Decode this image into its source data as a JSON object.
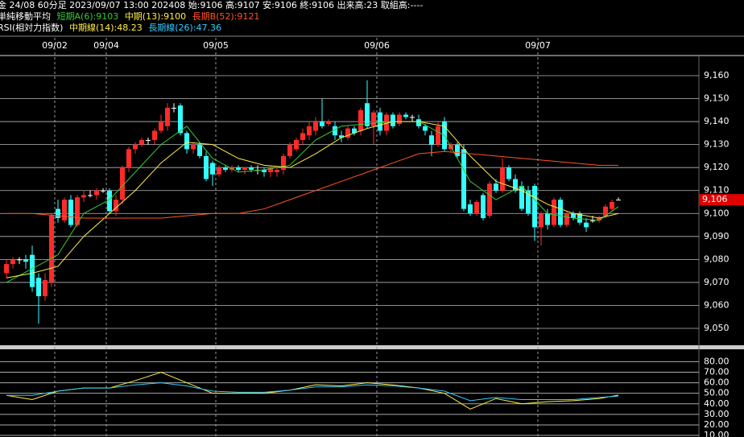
{
  "header": {
    "line1": "金 24/08 60分足 2023/09/07 13:00 202408 始:9106 高:9107 安:9106 終:9106 出来高:23 取組高:----",
    "ma_title": "単純移動平均",
    "rsi_title": "RSI(相対力指数)"
  },
  "chart_data": [
    {
      "type": "candlestick",
      "categories": [
        null,
        null,
        null,
        null,
        null,
        null,
        null,
        null,
        "09/02",
        null,
        null,
        null,
        null,
        null,
        null,
        null,
        "09/04",
        null,
        null,
        null,
        null,
        null,
        null,
        null,
        null,
        null,
        null,
        null,
        null,
        null,
        null,
        null,
        null,
        "09/05",
        null,
        null,
        null,
        null,
        null,
        null,
        null,
        null,
        null,
        null,
        null,
        null,
        null,
        null,
        null,
        null,
        null,
        null,
        null,
        null,
        null,
        null,
        null,
        null,
        "09/06",
        null,
        null,
        null,
        null,
        null,
        null,
        null,
        null,
        null,
        null,
        null,
        null,
        null,
        null,
        null,
        null,
        null,
        null,
        null,
        null,
        null,
        null,
        null,
        null,
        "09/07",
        null,
        null,
        null,
        null,
        null,
        null,
        null,
        null,
        null,
        null,
        null,
        null
      ],
      "ohlc": [
        [
          9074,
          9080,
          9072,
          9078
        ],
        [
          9078,
          9081,
          9076,
          9080
        ],
        [
          9080,
          9081,
          9078,
          9080
        ],
        [
          9080,
          9082,
          9076,
          9079
        ],
        [
          9082,
          9086,
          9066,
          9068
        ],
        [
          9072,
          9074,
          9052,
          9064
        ],
        [
          9064,
          9074,
          9062,
          9071
        ],
        [
          9070,
          9100,
          9068,
          9099
        ],
        [
          9102,
          9106,
          9096,
          9098
        ],
        [
          9097,
          9107,
          9096,
          9106
        ],
        [
          9106,
          9108,
          9094,
          9095
        ],
        [
          9095,
          9108,
          9094,
          9107
        ],
        [
          9107,
          9110,
          9105,
          9108
        ],
        [
          9108,
          9110,
          9107,
          9108
        ],
        [
          9108,
          9111,
          9106,
          9110
        ],
        [
          9110,
          9111,
          9109,
          9110
        ],
        [
          9110,
          9111,
          9100,
          9101
        ],
        [
          9101,
          9108,
          9099,
          9106
        ],
        [
          9106,
          9121,
          9104,
          9120
        ],
        [
          9120,
          9129,
          9118,
          9128
        ],
        [
          9128,
          9131,
          9126,
          9130
        ],
        [
          9130,
          9133,
          9129,
          9132
        ],
        [
          9132,
          9133,
          9130,
          9132
        ],
        [
          9132,
          9137,
          9130,
          9136
        ],
        [
          9136,
          9143,
          9135,
          9140
        ],
        [
          9138,
          9148,
          9136,
          9146
        ],
        [
          9146,
          9148,
          9144,
          9146
        ],
        [
          9147,
          9148,
          9134,
          9135
        ],
        [
          9135,
          9136,
          9126,
          9128
        ],
        [
          9128,
          9131,
          9126,
          9130
        ],
        [
          9130,
          9131,
          9124,
          9125
        ],
        [
          9125,
          9127,
          9114,
          9115
        ],
        [
          9122,
          9123,
          9112,
          9117
        ],
        [
          9117,
          9121,
          9116,
          9120
        ],
        [
          9120,
          9121,
          9118,
          9119
        ],
        [
          9119,
          9121,
          9118,
          9120
        ],
        [
          9120,
          9121,
          9118,
          9119
        ],
        [
          9119,
          9120,
          9117,
          9120
        ],
        [
          9120,
          9121,
          9118,
          9119
        ],
        [
          9119,
          9121,
          9117,
          9119
        ],
        [
          9119,
          9120,
          9116,
          9118
        ],
        [
          9118,
          9121,
          9116,
          9120
        ],
        [
          9118,
          9120,
          9116,
          9119
        ],
        [
          9119,
          9126,
          9117,
          9125
        ],
        [
          9125,
          9131,
          9124,
          9130
        ],
        [
          9128,
          9133,
          9127,
          9132
        ],
        [
          9132,
          9137,
          9130,
          9135
        ],
        [
          9134,
          9140,
          9132,
          9138
        ],
        [
          9136,
          9142,
          9134,
          9140
        ],
        [
          9140,
          9150,
          9137,
          9138
        ],
        [
          9139,
          9141,
          9138,
          9140
        ],
        [
          9138,
          9140,
          9132,
          9134
        ],
        [
          9134,
          9136,
          9131,
          9133
        ],
        [
          9133,
          9138,
          9132,
          9137
        ],
        [
          9137,
          9138,
          9134,
          9135
        ],
        [
          9136,
          9146,
          9134,
          9145
        ],
        [
          9148,
          9158,
          9137,
          9138
        ],
        [
          9138,
          9145,
          9130,
          9144
        ],
        [
          9144,
          9146,
          9134,
          9136
        ],
        [
          9136,
          9144,
          9134,
          9143
        ],
        [
          9143,
          9144,
          9137,
          9138
        ],
        [
          9139,
          9144,
          9138,
          9143
        ],
        [
          9143,
          9144,
          9141,
          9142
        ],
        [
          9142,
          9143,
          9140,
          9142
        ],
        [
          9141,
          9143,
          9137,
          9138
        ],
        [
          9138,
          9139,
          9134,
          9136
        ],
        [
          9134,
          9136,
          9125,
          9130
        ],
        [
          9130,
          9140,
          9129,
          9138
        ],
        [
          9140,
          9142,
          9127,
          9128
        ],
        [
          9128,
          9131,
          9127,
          9130
        ],
        [
          9130,
          9131,
          9124,
          9125
        ],
        [
          9128,
          9130,
          9101,
          9102
        ],
        [
          9104,
          9106,
          9099,
          9100
        ],
        [
          9100,
          9106,
          9099,
          9105
        ],
        [
          9108,
          9109,
          9097,
          9098
        ],
        [
          9099,
          9114,
          9098,
          9113
        ],
        [
          9113,
          9115,
          9109,
          9110
        ],
        [
          9110,
          9124,
          9109,
          9120
        ],
        [
          9120,
          9121,
          9114,
          9115
        ],
        [
          9115,
          9117,
          9109,
          9110
        ],
        [
          9112,
          9114,
          9101,
          9102
        ],
        [
          9110,
          9112,
          9099,
          9100
        ],
        [
          9112,
          9113,
          9088,
          9094
        ],
        [
          9094,
          9101,
          9086,
          9100
        ],
        [
          9100,
          9102,
          9093,
          9095
        ],
        [
          9095,
          9107,
          9094,
          9106
        ],
        [
          9106,
          9107,
          9094,
          9095
        ],
        [
          9095,
          9101,
          9094,
          9100
        ],
        [
          9100,
          9101,
          9097,
          9098
        ],
        [
          9100,
          9101,
          9095,
          9096
        ],
        [
          9096,
          9098,
          9092,
          9094
        ],
        [
          9097,
          9099,
          9096,
          9097
        ],
        [
          9097,
          9099,
          9096,
          9098
        ],
        [
          9099,
          9104,
          9098,
          9103
        ],
        [
          9102,
          9106,
          9101,
          9105
        ],
        [
          9106,
          9107,
          9106,
          9106
        ]
      ],
      "up_color": "#ff2a2a",
      "down_color": "#33ffff",
      "doji_color": "#ffffff",
      "series": [
        {
          "name": "短期A(6):9103",
          "color": "#33cc33",
          "x": [
            0,
            4,
            8,
            12,
            16,
            20,
            24,
            28,
            32,
            36,
            40,
            44,
            48,
            52,
            56,
            60,
            64,
            68,
            72,
            76,
            80,
            84,
            88,
            92,
            95
          ],
          "values": [
            9070,
            9076,
            9082,
            9100,
            9106,
            9118,
            9130,
            9138,
            9124,
            9118,
            9119,
            9121,
            9132,
            9138,
            9139,
            9140,
            9140,
            9134,
            9114,
            9106,
            9112,
            9100,
            9098,
            9097,
            9103
          ]
        },
        {
          "name": "中期(13):9100",
          "color": "#ffee44",
          "x": [
            0,
            4,
            8,
            12,
            16,
            20,
            24,
            28,
            32,
            36,
            40,
            44,
            48,
            52,
            56,
            60,
            64,
            68,
            72,
            76,
            80,
            84,
            88,
            92,
            95
          ],
          "values": [
            9072,
            9074,
            9077,
            9090,
            9100,
            9110,
            9122,
            9131,
            9130,
            9124,
            9121,
            9120,
            9126,
            9133,
            9137,
            9140,
            9140,
            9138,
            9125,
            9114,
            9110,
            9104,
            9100,
            9098,
            9100
          ]
        },
        {
          "name": "長期B(52):9121",
          "color": "#ff5522",
          "x": [
            0,
            4,
            8,
            12,
            16,
            20,
            24,
            28,
            32,
            36,
            40,
            44,
            48,
            52,
            56,
            60,
            64,
            68,
            72,
            76,
            80,
            84,
            88,
            92,
            95
          ],
          "values": [
            9100,
            9100,
            9099,
            9098,
            9098,
            9098,
            9098,
            9099,
            9100,
            9100,
            9102,
            9106,
            9110,
            9114,
            9118,
            9122,
            9126,
            9127,
            9126,
            9125,
            9124,
            9123,
            9122,
            9121,
            9121
          ]
        }
      ],
      "ylim": [
        9043,
        9168.4
      ],
      "yticks": [
        {
          "value": 9050,
          "label": "9,050"
        },
        {
          "value": 9060,
          "label": "9,060"
        },
        {
          "value": 9070,
          "label": "9,070"
        },
        {
          "value": 9080,
          "label": "9,080"
        },
        {
          "value": 9090,
          "label": "9,090"
        },
        {
          "value": 9100,
          "label": "9,100"
        },
        {
          "value": 9110,
          "label": "9,110"
        },
        {
          "value": 9120,
          "label": "9,120"
        },
        {
          "value": 9130,
          "label": "9,130"
        },
        {
          "value": 9140,
          "label": "9,140"
        },
        {
          "value": 9150,
          "label": "9,150"
        },
        {
          "value": 9160,
          "label": "9,160"
        }
      ],
      "last_price": {
        "value": 9106,
        "label": "9,106"
      },
      "grid": true
    },
    {
      "type": "line",
      "series": [
        {
          "name": "中期線(14):48.23",
          "color": "#ffee44",
          "x": [
            0,
            4,
            8,
            12,
            16,
            20,
            24,
            28,
            32,
            36,
            40,
            44,
            48,
            52,
            56,
            60,
            64,
            68,
            72,
            76,
            80,
            84,
            88,
            92,
            95
          ],
          "values": [
            48,
            44,
            52,
            55,
            55,
            62,
            70,
            60,
            50,
            50,
            50,
            53,
            58,
            57,
            60,
            58,
            55,
            50,
            35,
            45,
            40,
            42,
            43,
            45,
            48.23
          ]
        },
        {
          "name": "長期線(26):47.36",
          "color": "#33ccff",
          "x": [
            0,
            4,
            8,
            12,
            16,
            20,
            24,
            28,
            32,
            36,
            40,
            44,
            48,
            52,
            56,
            60,
            64,
            68,
            72,
            76,
            80,
            84,
            88,
            92,
            95
          ],
          "values": [
            48,
            48,
            52,
            55,
            55,
            58,
            60,
            57,
            52,
            51,
            51,
            53,
            56,
            56,
            58,
            57,
            55,
            52,
            43,
            46,
            44,
            44,
            44,
            46,
            47.36
          ]
        }
      ],
      "ylim": [
        8.5,
        91.75
      ],
      "yticks": [
        {
          "value": 10,
          "label": "10.00"
        },
        {
          "value": 20,
          "label": "20.00"
        },
        {
          "value": 30,
          "label": "30.00"
        },
        {
          "value": 40,
          "label": "40.00"
        },
        {
          "value": 50,
          "label": "50.00"
        },
        {
          "value": 60,
          "label": "60.00"
        },
        {
          "value": 70,
          "label": "70.00"
        },
        {
          "value": 80,
          "label": "80.00"
        }
      ],
      "grid": true
    }
  ]
}
